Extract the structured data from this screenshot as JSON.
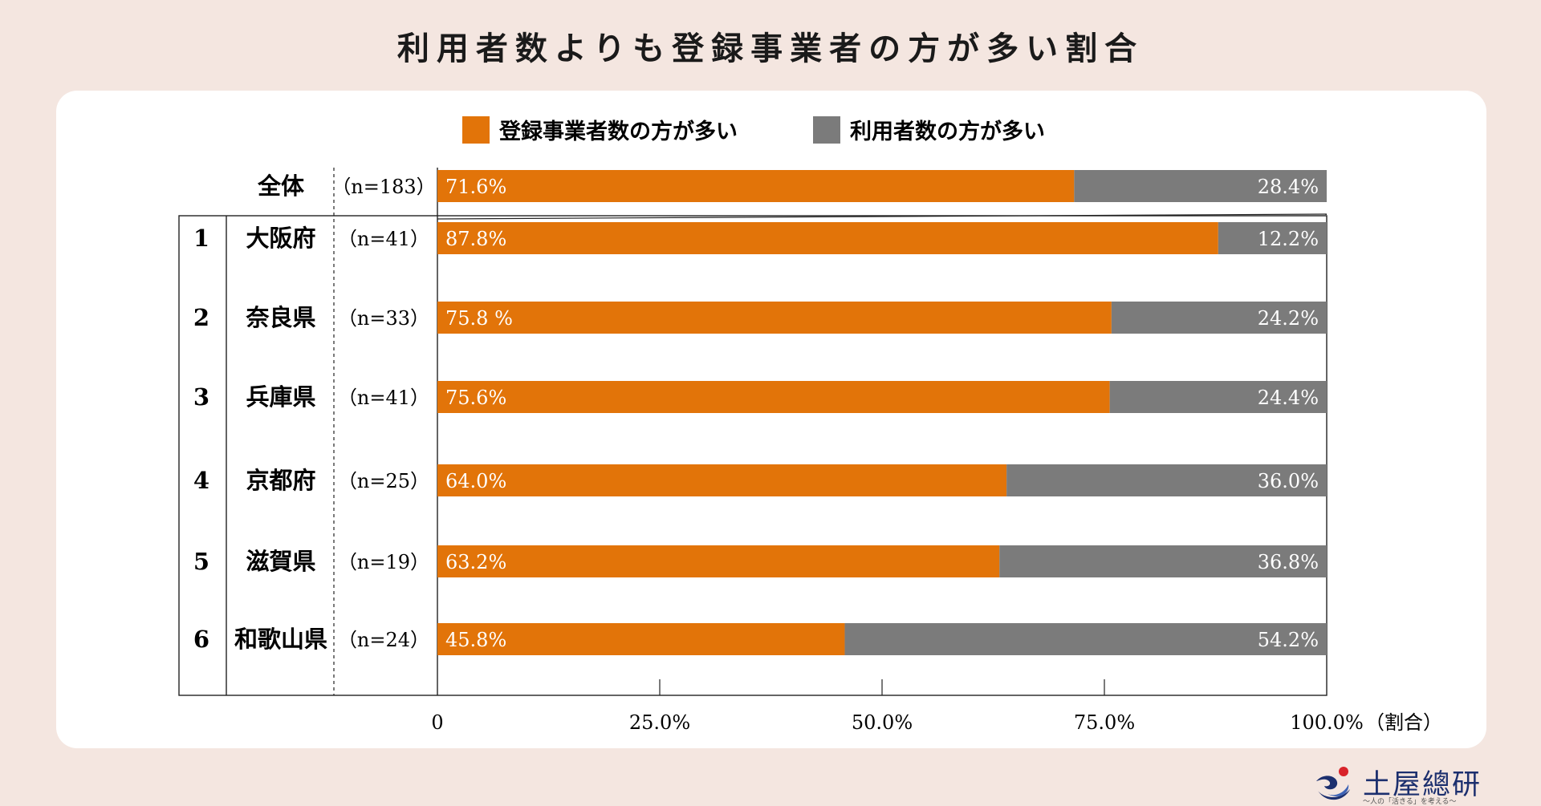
{
  "title": "利用者数よりも登録事業者の方が多い割合",
  "legend": [
    {
      "label": "登録事業者数の方が多い",
      "color": "#e27409"
    },
    {
      "label": "利用者数の方が多い",
      "color": "#7b7b7b"
    }
  ],
  "logo": {
    "name": "土屋總研",
    "tagline": "〜人の「活きる」を考える〜"
  },
  "chart_data": {
    "type": "bar",
    "orientation": "horizontal",
    "stacked": true,
    "title": "利用者数よりも登録事業者の方が多い割合",
    "xlabel": "（割合）",
    "xlim": [
      0,
      100
    ],
    "x_ticks": [
      {
        "value": 0,
        "label": "0"
      },
      {
        "value": 25,
        "label": "25.0%"
      },
      {
        "value": 50,
        "label": "50.0%"
      },
      {
        "value": 75,
        "label": "75.0%"
      },
      {
        "value": 100,
        "label": "100.0%"
      }
    ],
    "total": {
      "name": "全体",
      "n_label": "（n=183）",
      "values": [
        71.6,
        28.4
      ],
      "labels": [
        "71.6%",
        "28.4%"
      ]
    },
    "rows": [
      {
        "rank": "1",
        "name": "大阪府",
        "n_label": "（n=41）",
        "values": [
          87.8,
          12.2
        ],
        "labels": [
          "87.8%",
          "12.2%"
        ]
      },
      {
        "rank": "2",
        "name": "奈良県",
        "n_label": "（n=33）",
        "values": [
          75.8,
          24.2
        ],
        "labels": [
          "75.8 %",
          "24.2%"
        ]
      },
      {
        "rank": "3",
        "name": "兵庫県",
        "n_label": "（n=41）",
        "values": [
          75.6,
          24.4
        ],
        "labels": [
          "75.6%",
          "24.4%"
        ]
      },
      {
        "rank": "4",
        "name": "京都府",
        "n_label": "（n=25）",
        "values": [
          64.0,
          36.0
        ],
        "labels": [
          "64.0%",
          "36.0%"
        ]
      },
      {
        "rank": "5",
        "name": "滋賀県",
        "n_label": "（n=19）",
        "values": [
          63.2,
          36.8
        ],
        "labels": [
          "63.2%",
          "36.8%"
        ]
      },
      {
        "rank": "6",
        "name": "和歌山県",
        "n_label": "（n=24）",
        "values": [
          45.8,
          54.2
        ],
        "labels": [
          "45.8%",
          "54.2%"
        ]
      }
    ],
    "series": [
      {
        "name": "登録事業者数の方が多い",
        "color": "#e27409"
      },
      {
        "name": "利用者数の方が多い",
        "color": "#7b7b7b"
      }
    ]
  }
}
